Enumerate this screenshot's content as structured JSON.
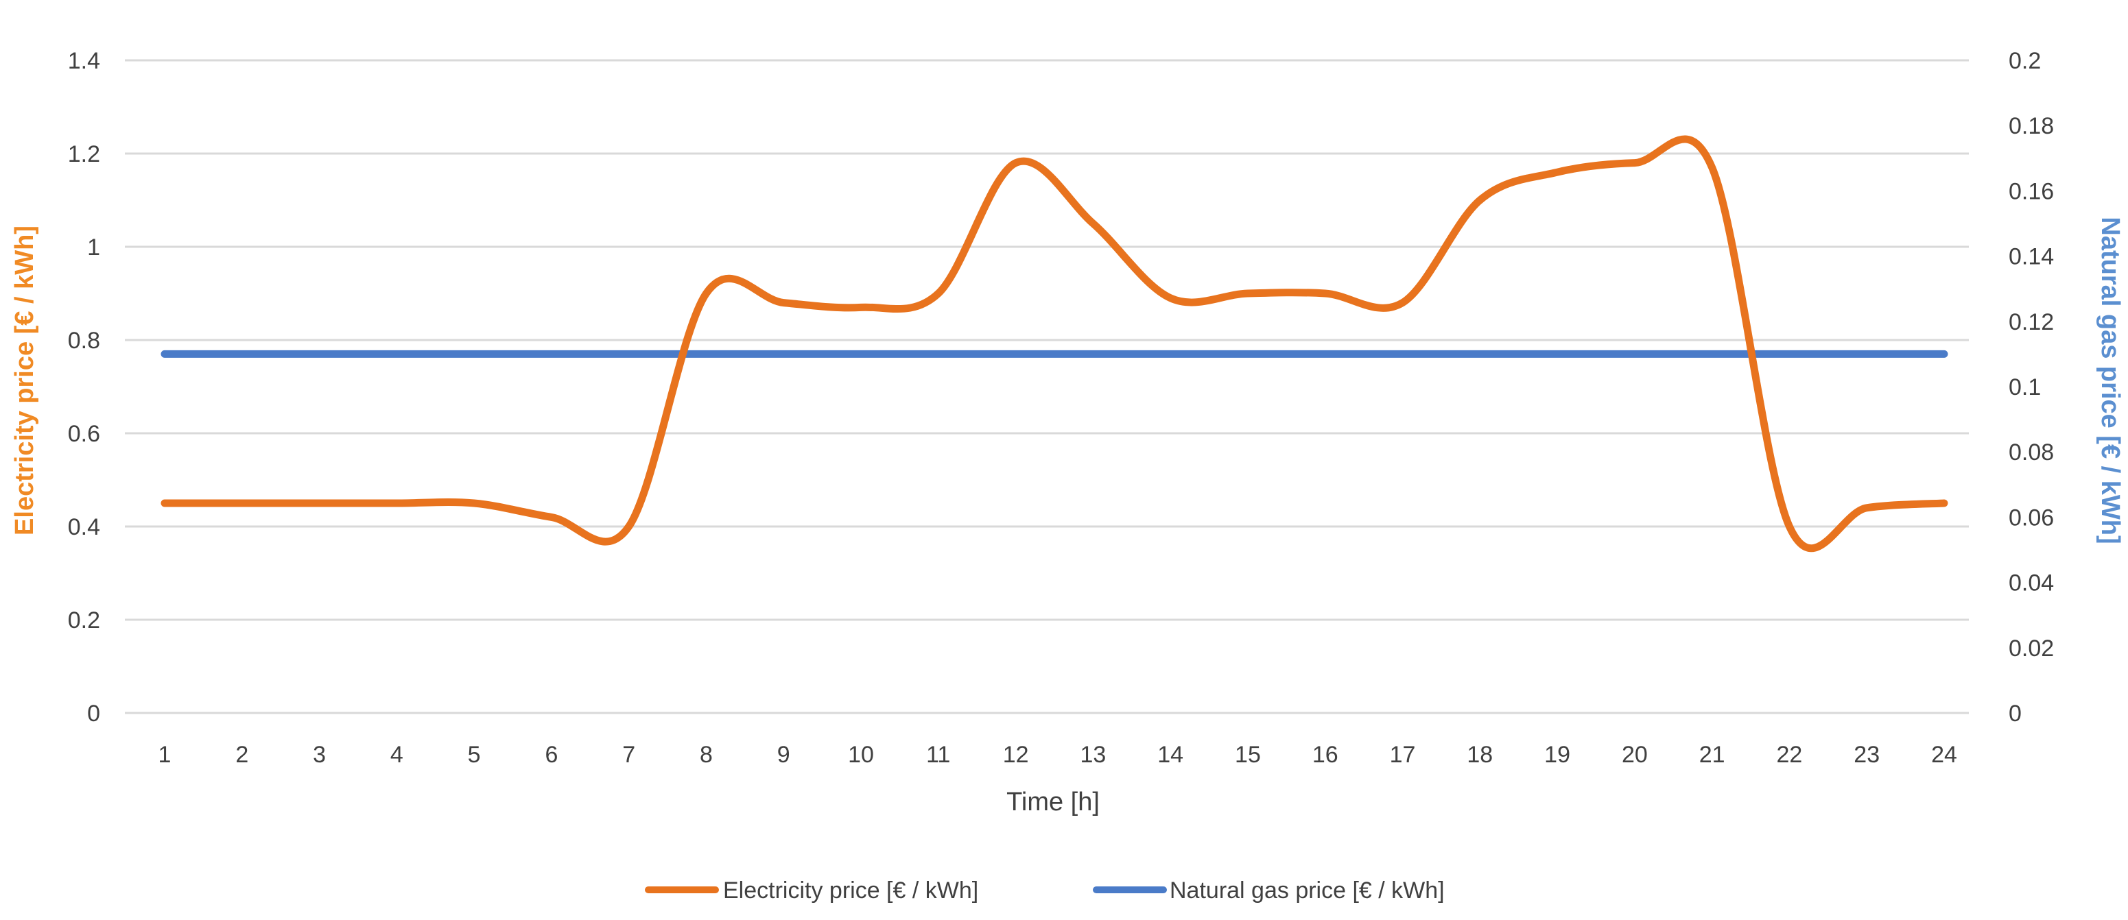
{
  "chart_data": {
    "type": "line",
    "x": [
      1,
      2,
      3,
      4,
      5,
      6,
      7,
      8,
      9,
      10,
      11,
      12,
      13,
      14,
      15,
      16,
      17,
      18,
      19,
      20,
      21,
      22,
      23,
      24
    ],
    "xlabel": "Time [h]",
    "ylabel_left": "Electricity price [€ / kWh]",
    "ylabel_right": "Natural gas price [€ / kWh]",
    "ylim_left": [
      0,
      1.4
    ],
    "ylim_right": [
      0,
      0.2
    ],
    "yticks_left": [
      "0",
      "0.2",
      "0.4",
      "0.6",
      "0.8",
      "1",
      "1.2",
      "1.4"
    ],
    "yticks_right": [
      "0",
      "0.02",
      "0.04",
      "0.06",
      "0.08",
      "0.1",
      "0.12",
      "0.14",
      "0.16",
      "0.18",
      "0.2"
    ],
    "grid": true,
    "legend_position": "bottom",
    "colors": {
      "electricity": "#E8731E",
      "gas": "#4A7BC8",
      "left_axis_title": "#F08A24",
      "right_axis_title": "#5B8FD0"
    },
    "series": [
      {
        "name": "Electricity price [€ / kWh]",
        "axis": "left",
        "values": [
          0.45,
          0.45,
          0.45,
          0.45,
          0.45,
          0.42,
          0.4,
          0.9,
          0.88,
          0.87,
          0.9,
          1.18,
          1.05,
          0.89,
          0.9,
          0.9,
          0.88,
          1.1,
          1.16,
          1.18,
          1.17,
          0.4,
          0.44,
          0.45
        ]
      },
      {
        "name": "Natural gas price [€ / kWh]",
        "axis": "right",
        "values": [
          0.11,
          0.11,
          0.11,
          0.11,
          0.11,
          0.11,
          0.11,
          0.11,
          0.11,
          0.11,
          0.11,
          0.11,
          0.11,
          0.11,
          0.11,
          0.11,
          0.11,
          0.11,
          0.11,
          0.11,
          0.11,
          0.11,
          0.11,
          0.11
        ]
      }
    ]
  }
}
